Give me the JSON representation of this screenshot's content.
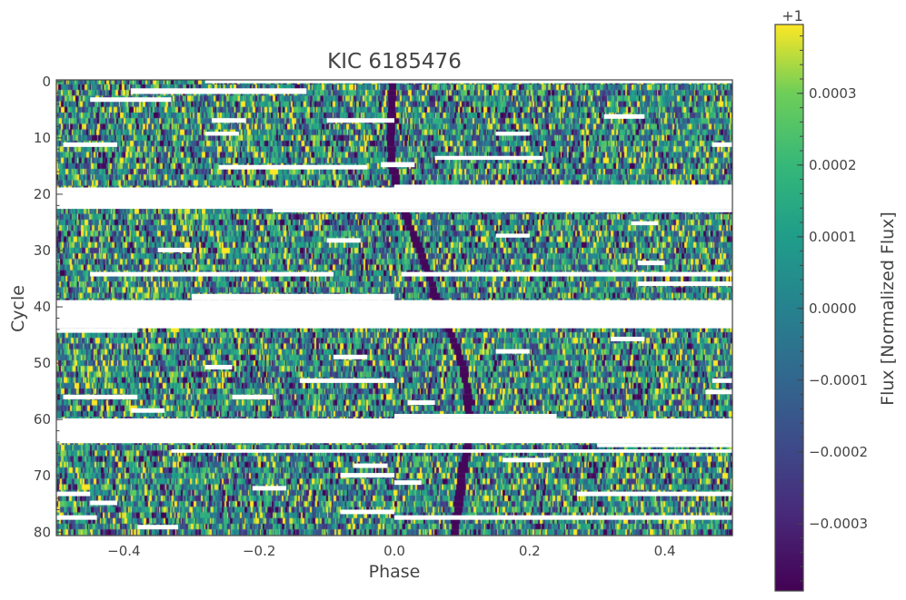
{
  "chart_data": {
    "type": "heatmap",
    "title": "KIC 6185476",
    "xlabel": "Phase",
    "ylabel": "Cycle",
    "xlim": [
      -0.5,
      0.5
    ],
    "ylim": [
      -0.3,
      80.6
    ],
    "y_inverted": true,
    "xticks": [
      -0.4,
      -0.2,
      0.0,
      0.2,
      0.4
    ],
    "xtick_labels": [
      "−0.4",
      "−0.2",
      "0.0",
      "0.2",
      "0.4"
    ],
    "yticks": [
      0,
      10,
      20,
      30,
      40,
      50,
      60,
      70,
      80
    ],
    "ytick_labels": [
      "0",
      "10",
      "20",
      "30",
      "40",
      "50",
      "60",
      "70",
      "80"
    ],
    "grid": false,
    "colormap": "viridis",
    "colorbar": {
      "label": "Flux [Normalized Flux]",
      "offset_label": "+1",
      "range": [
        -0.000394,
        0.000396
      ],
      "ticks": [
        0.0003,
        0.0002,
        0.0001,
        0.0,
        -0.0001,
        -0.0002,
        -0.0003
      ],
      "tick_labels": [
        "0.0003",
        "0.0002",
        "0.0001",
        "0.0000",
        "−0.0001",
        "−0.0002",
        "−0.0003"
      ]
    },
    "transit_track": {
      "cycles": [
        0,
        10,
        15,
        25,
        30,
        35,
        40,
        45,
        50,
        55,
        60,
        65,
        70,
        75,
        80
      ],
      "phase": [
        -0.003,
        -0.005,
        -0.004,
        0.02,
        0.038,
        0.053,
        0.065,
        0.085,
        0.1,
        0.108,
        0.11,
        0.108,
        0.1,
        0.095,
        0.088
      ]
    },
    "data_gaps": [
      {
        "phase": [
          -0.28,
          0.5
        ],
        "cycles": [
          -0.3,
          0.3
        ]
      },
      {
        "phase": [
          -0.39,
          -0.13
        ],
        "cycles": [
          1.2,
          2.2
        ]
      },
      {
        "phase": [
          -0.45,
          -0.33
        ],
        "cycles": [
          2.8,
          3.6
        ]
      },
      {
        "phase": [
          -0.27,
          -0.22
        ],
        "cycles": [
          6.5,
          7.3
        ]
      },
      {
        "phase": [
          -0.1,
          0.0
        ],
        "cycles": [
          6.5,
          7.3
        ]
      },
      {
        "phase": [
          0.31,
          0.37
        ],
        "cycles": [
          5.8,
          6.6
        ]
      },
      {
        "phase": [
          -0.28,
          -0.23
        ],
        "cycles": [
          8.9,
          9.6
        ]
      },
      {
        "phase": [
          0.15,
          0.2
        ],
        "cycles": [
          8.9,
          9.6
        ]
      },
      {
        "phase": [
          -0.49,
          -0.41
        ],
        "cycles": [
          10.8,
          11.6
        ]
      },
      {
        "phase": [
          0.47,
          0.5
        ],
        "cycles": [
          10.8,
          11.6
        ]
      },
      {
        "phase": [
          0.06,
          0.22
        ],
        "cycles": [
          13.2,
          13.9
        ]
      },
      {
        "phase": [
          -0.26,
          -0.04
        ],
        "cycles": [
          14.8,
          15.6
        ]
      },
      {
        "phase": [
          -0.02,
          0.03
        ],
        "cycles": [
          14.3,
          15.2
        ]
      },
      {
        "phase": [
          0.0,
          0.5
        ],
        "cycles": [
          18.3,
          18.8
        ]
      },
      {
        "phase": [
          -0.5,
          0.5
        ],
        "cycles": [
          18.8,
          22.6
        ]
      },
      {
        "phase": [
          -0.18,
          0.5
        ],
        "cycles": [
          22.6,
          23.2
        ]
      },
      {
        "phase": [
          0.35,
          0.39
        ],
        "cycles": [
          24.8,
          25.5
        ]
      },
      {
        "phase": [
          0.15,
          0.2
        ],
        "cycles": [
          27.0,
          27.7
        ]
      },
      {
        "phase": [
          -0.1,
          -0.05
        ],
        "cycles": [
          27.8,
          28.6
        ]
      },
      {
        "phase": [
          -0.35,
          -0.3
        ],
        "cycles": [
          29.5,
          30.3
        ]
      },
      {
        "phase": [
          0.36,
          0.4
        ],
        "cycles": [
          31.8,
          32.6
        ]
      },
      {
        "phase": [
          -0.45,
          -0.09
        ],
        "cycles": [
          33.8,
          34.6
        ]
      },
      {
        "phase": [
          0.01,
          0.5
        ],
        "cycles": [
          33.8,
          34.6
        ]
      },
      {
        "phase": [
          0.36,
          0.5
        ],
        "cycles": [
          35.5,
          36.3
        ]
      },
      {
        "phase": [
          -0.3,
          0.0
        ],
        "cycles": [
          37.7,
          38.8
        ]
      },
      {
        "phase": [
          -0.5,
          0.5
        ],
        "cycles": [
          38.8,
          43.8
        ]
      },
      {
        "phase": [
          -0.5,
          -0.38
        ],
        "cycles": [
          43.8,
          44.6
        ]
      },
      {
        "phase": [
          0.32,
          0.37
        ],
        "cycles": [
          45.3,
          46.1
        ]
      },
      {
        "phase": [
          0.15,
          0.2
        ],
        "cycles": [
          47.5,
          48.3
        ]
      },
      {
        "phase": [
          -0.09,
          -0.04
        ],
        "cycles": [
          48.5,
          49.3
        ]
      },
      {
        "phase": [
          -0.28,
          -0.24
        ],
        "cycles": [
          50.3,
          51.1
        ]
      },
      {
        "phase": [
          -0.14,
          0.0
        ],
        "cycles": [
          52.7,
          53.5
        ]
      },
      {
        "phase": [
          0.47,
          0.5
        ],
        "cycles": [
          52.7,
          53.5
        ]
      },
      {
        "phase": [
          -0.49,
          -0.38
        ],
        "cycles": [
          55.6,
          56.4
        ]
      },
      {
        "phase": [
          -0.24,
          -0.18
        ],
        "cycles": [
          55.6,
          56.4
        ]
      },
      {
        "phase": [
          0.46,
          0.5
        ],
        "cycles": [
          54.7,
          55.5
        ]
      },
      {
        "phase": [
          0.02,
          0.06
        ],
        "cycles": [
          56.6,
          57.4
        ]
      },
      {
        "phase": [
          -0.39,
          -0.34
        ],
        "cycles": [
          58.0,
          58.8
        ]
      },
      {
        "phase": [
          0.0,
          0.24
        ],
        "cycles": [
          59.0,
          59.8
        ]
      },
      {
        "phase": [
          -0.5,
          0.5
        ],
        "cycles": [
          59.8,
          64.2
        ]
      },
      {
        "phase": [
          0.3,
          0.5
        ],
        "cycles": [
          64.2,
          64.9
        ]
      },
      {
        "phase": [
          -0.33,
          0.5
        ],
        "cycles": [
          65.3,
          65.9
        ]
      },
      {
        "phase": [
          0.16,
          0.23
        ],
        "cycles": [
          66.8,
          67.6
        ]
      },
      {
        "phase": [
          -0.06,
          -0.01
        ],
        "cycles": [
          67.8,
          68.6
        ]
      },
      {
        "phase": [
          -0.08,
          0.0
        ],
        "cycles": [
          69.5,
          70.3
        ]
      },
      {
        "phase": [
          0.0,
          0.04
        ],
        "cycles": [
          70.8,
          71.6
        ]
      },
      {
        "phase": [
          -0.21,
          -0.16
        ],
        "cycles": [
          71.8,
          72.6
        ]
      },
      {
        "phase": [
          -0.5,
          -0.45
        ],
        "cycles": [
          72.8,
          73.6
        ]
      },
      {
        "phase": [
          0.27,
          0.5
        ],
        "cycles": [
          72.8,
          73.6
        ]
      },
      {
        "phase": [
          -0.45,
          -0.41
        ],
        "cycles": [
          74.4,
          75.2
        ]
      },
      {
        "phase": [
          -0.08,
          0.0
        ],
        "cycles": [
          76.0,
          76.8
        ]
      },
      {
        "phase": [
          -0.5,
          -0.44
        ],
        "cycles": [
          77.0,
          77.8
        ]
      },
      {
        "phase": [
          0.0,
          0.5
        ],
        "cycles": [
          77.0,
          77.8
        ]
      },
      {
        "phase": [
          -0.38,
          -0.32
        ],
        "cycles": [
          78.7,
          79.5
        ]
      }
    ]
  }
}
